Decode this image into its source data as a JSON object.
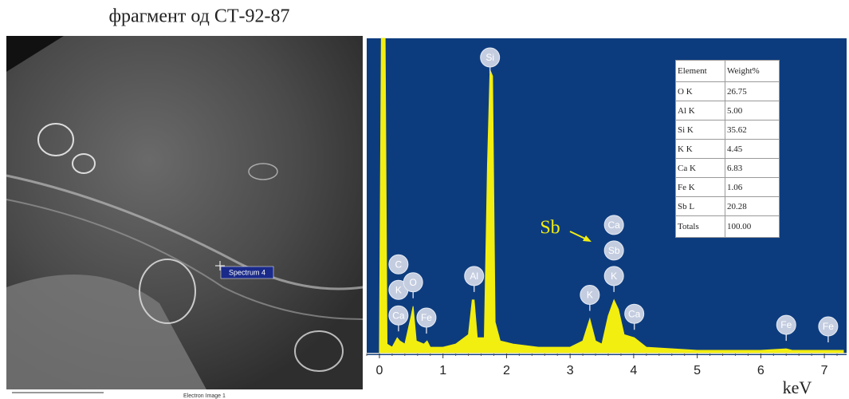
{
  "title": "фрагмент од СТ-92-87",
  "sem_image": {
    "marker_label": "Spectrum 4",
    "caption": "Electron Image 1"
  },
  "chart_data": {
    "type": "line",
    "x": [
      0,
      0.03,
      0.09,
      0.12,
      0.2,
      0.28,
      0.32,
      0.4,
      0.5,
      0.53,
      0.58,
      0.7,
      0.75,
      0.8,
      1.0,
      1.2,
      1.4,
      1.46,
      1.49,
      1.54,
      1.65,
      1.7,
      1.74,
      1.78,
      1.82,
      1.9,
      2.1,
      2.5,
      3.0,
      3.2,
      3.31,
      3.4,
      3.5,
      3.6,
      3.69,
      3.76,
      3.85,
      4.01,
      4.2,
      5,
      6,
      6.4,
      6.5,
      7.06,
      7.3
    ],
    "values": [
      2,
      100,
      100,
      3,
      2,
      5,
      4,
      3,
      12,
      15,
      4,
      3,
      4,
      2,
      2,
      3,
      6,
      17,
      17,
      5,
      5,
      60,
      90,
      88,
      10,
      4,
      3,
      2,
      2,
      4,
      11,
      4,
      3,
      12,
      17,
      14,
      6,
      5,
      2,
      1,
      1,
      1.5,
      1,
      1,
      1
    ],
    "color": "#f2ee10",
    "xlim": [
      -0.2,
      7.35
    ],
    "ylim": [
      0,
      100
    ],
    "xticks": [
      0,
      1,
      2,
      3,
      4,
      5,
      6,
      7
    ],
    "xlabel": "keV",
    "annotation": "Sb",
    "peak_labels": [
      {
        "x": 0.3,
        "labels": [
          "Ca",
          "K",
          "C"
        ]
      },
      {
        "x": 0.53,
        "labels": [
          "O"
        ]
      },
      {
        "x": 0.74,
        "labels": [
          "Fe"
        ]
      },
      {
        "x": 1.49,
        "labels": [
          "Al"
        ]
      },
      {
        "x": 1.74,
        "labels": [
          "Si"
        ]
      },
      {
        "x": 3.31,
        "labels": [
          "K"
        ]
      },
      {
        "x": 3.69,
        "labels": [
          "K",
          "Sb",
          "Ca"
        ]
      },
      {
        "x": 4.01,
        "labels": [
          "Ca"
        ]
      },
      {
        "x": 6.4,
        "labels": [
          "Fe"
        ]
      },
      {
        "x": 7.06,
        "labels": [
          "Fe"
        ]
      }
    ]
  },
  "table": {
    "header": [
      "Element",
      "Weight%"
    ],
    "rows": [
      [
        "O K",
        "26.75"
      ],
      [
        "Al K",
        "5.00"
      ],
      [
        "Si K",
        "35.62"
      ],
      [
        "K K",
        "4.45"
      ],
      [
        "Ca K",
        "6.83"
      ],
      [
        "Fe K",
        "1.06"
      ],
      [
        "Sb L",
        "20.28"
      ]
    ],
    "total": [
      "Totals",
      "100.00"
    ]
  }
}
